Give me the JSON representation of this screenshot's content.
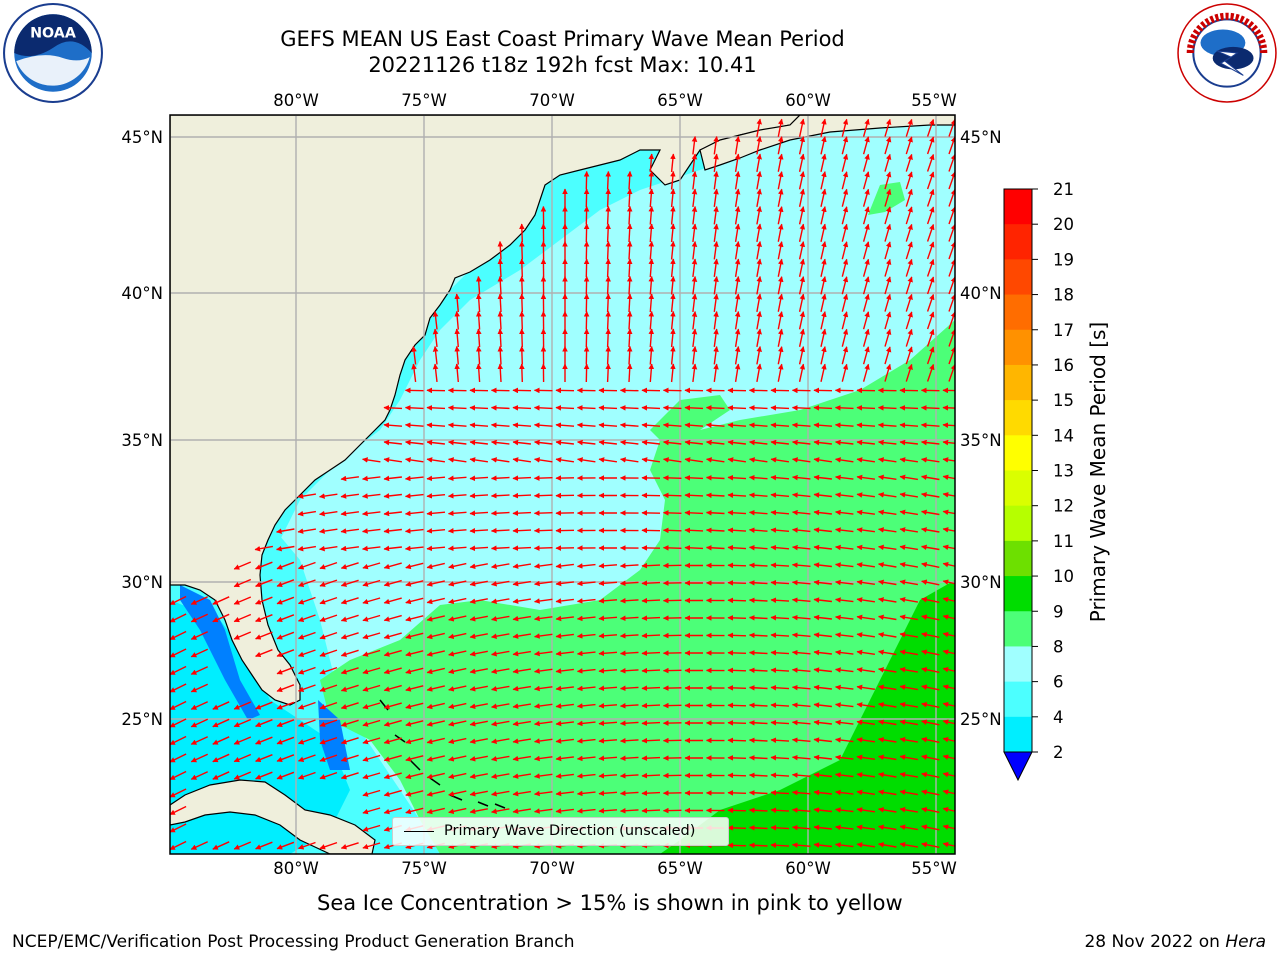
{
  "title": {
    "line1": "GEFS MEAN US East Coast Primary Wave Mean Period",
    "line2": "20221126 t18z 192h fcst   Max: 10.41"
  },
  "map": {
    "lon_range": [
      -85,
      -54.3
    ],
    "lat_range": [
      20,
      46
    ],
    "lon_ticks": [
      "80°W",
      "75°W",
      "70°W",
      "65°W",
      "60°W",
      "55°W"
    ],
    "lat_ticks": [
      "45°N",
      "40°N",
      "35°N",
      "30°N",
      "25°N"
    ],
    "gridlines": true
  },
  "colorbar": {
    "label": "Primary Wave Mean Period [s]",
    "ticks": [
      "21",
      "20",
      "19",
      "18",
      "17",
      "16",
      "15",
      "14",
      "13",
      "12",
      "11",
      "10",
      "9",
      "8",
      "6",
      "4",
      "2"
    ],
    "colors": [
      "#ff0000",
      "#ff2400",
      "#ff4800",
      "#ff6d00",
      "#ff9100",
      "#ffb600",
      "#ffda00",
      "#ffff00",
      "#daff00",
      "#b6ff00",
      "#6de000",
      "#00dd00",
      "#4cff78",
      "#a0ffff",
      "#4cffff",
      "#00eeff",
      "#0080ff"
    ],
    "under_color": "#0000ff"
  },
  "colors": {
    "land": "#efefdc",
    "arrow": "#ff0000",
    "grid": "#b0b0b0"
  },
  "legend": {
    "label": "Primary Wave Direction (unscaled)"
  },
  "footer": {
    "note": "Sea Ice Concentration > 15% is shown in pink to yellow",
    "credit": "NCEP/EMC/Verification Post Processing Product Generation Branch",
    "date": "28 Nov 2022 on",
    "host": "Hera"
  },
  "logos": {
    "left": "noaa-logo",
    "right": "nws-logo"
  }
}
